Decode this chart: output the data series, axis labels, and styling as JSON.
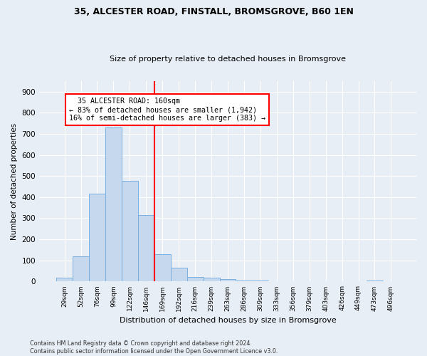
{
  "title1": "35, ALCESTER ROAD, FINSTALL, BROMSGROVE, B60 1EN",
  "title2": "Size of property relative to detached houses in Bromsgrove",
  "xlabel": "Distribution of detached houses by size in Bromsgrove",
  "ylabel": "Number of detached properties",
  "categories": [
    "29sqm",
    "52sqm",
    "76sqm",
    "99sqm",
    "122sqm",
    "146sqm",
    "169sqm",
    "192sqm",
    "216sqm",
    "239sqm",
    "263sqm",
    "286sqm",
    "309sqm",
    "333sqm",
    "356sqm",
    "379sqm",
    "403sqm",
    "426sqm",
    "449sqm",
    "473sqm",
    "496sqm"
  ],
  "values": [
    18,
    120,
    418,
    730,
    478,
    315,
    130,
    65,
    22,
    18,
    10,
    5,
    5,
    3,
    3,
    0,
    0,
    0,
    0,
    5,
    0
  ],
  "bar_color": "#c5d8ed",
  "bar_edge_color": "#7aafe0",
  "vertical_line_color": "red",
  "annotation_text": "  35 ALCESTER ROAD: 160sqm  \n← 83% of detached houses are smaller (1,942)\n16% of semi-detached houses are larger (383) →",
  "annotation_box_color": "white",
  "annotation_box_edge": "red",
  "ylim": [
    0,
    950
  ],
  "yticks": [
    0,
    100,
    200,
    300,
    400,
    500,
    600,
    700,
    800,
    900
  ],
  "footnote1": "Contains HM Land Registry data © Crown copyright and database right 2024.",
  "footnote2": "Contains public sector information licensed under the Open Government Licence v3.0.",
  "bg_color": "#e8eef5",
  "plot_bg_color": "#e8eef5"
}
